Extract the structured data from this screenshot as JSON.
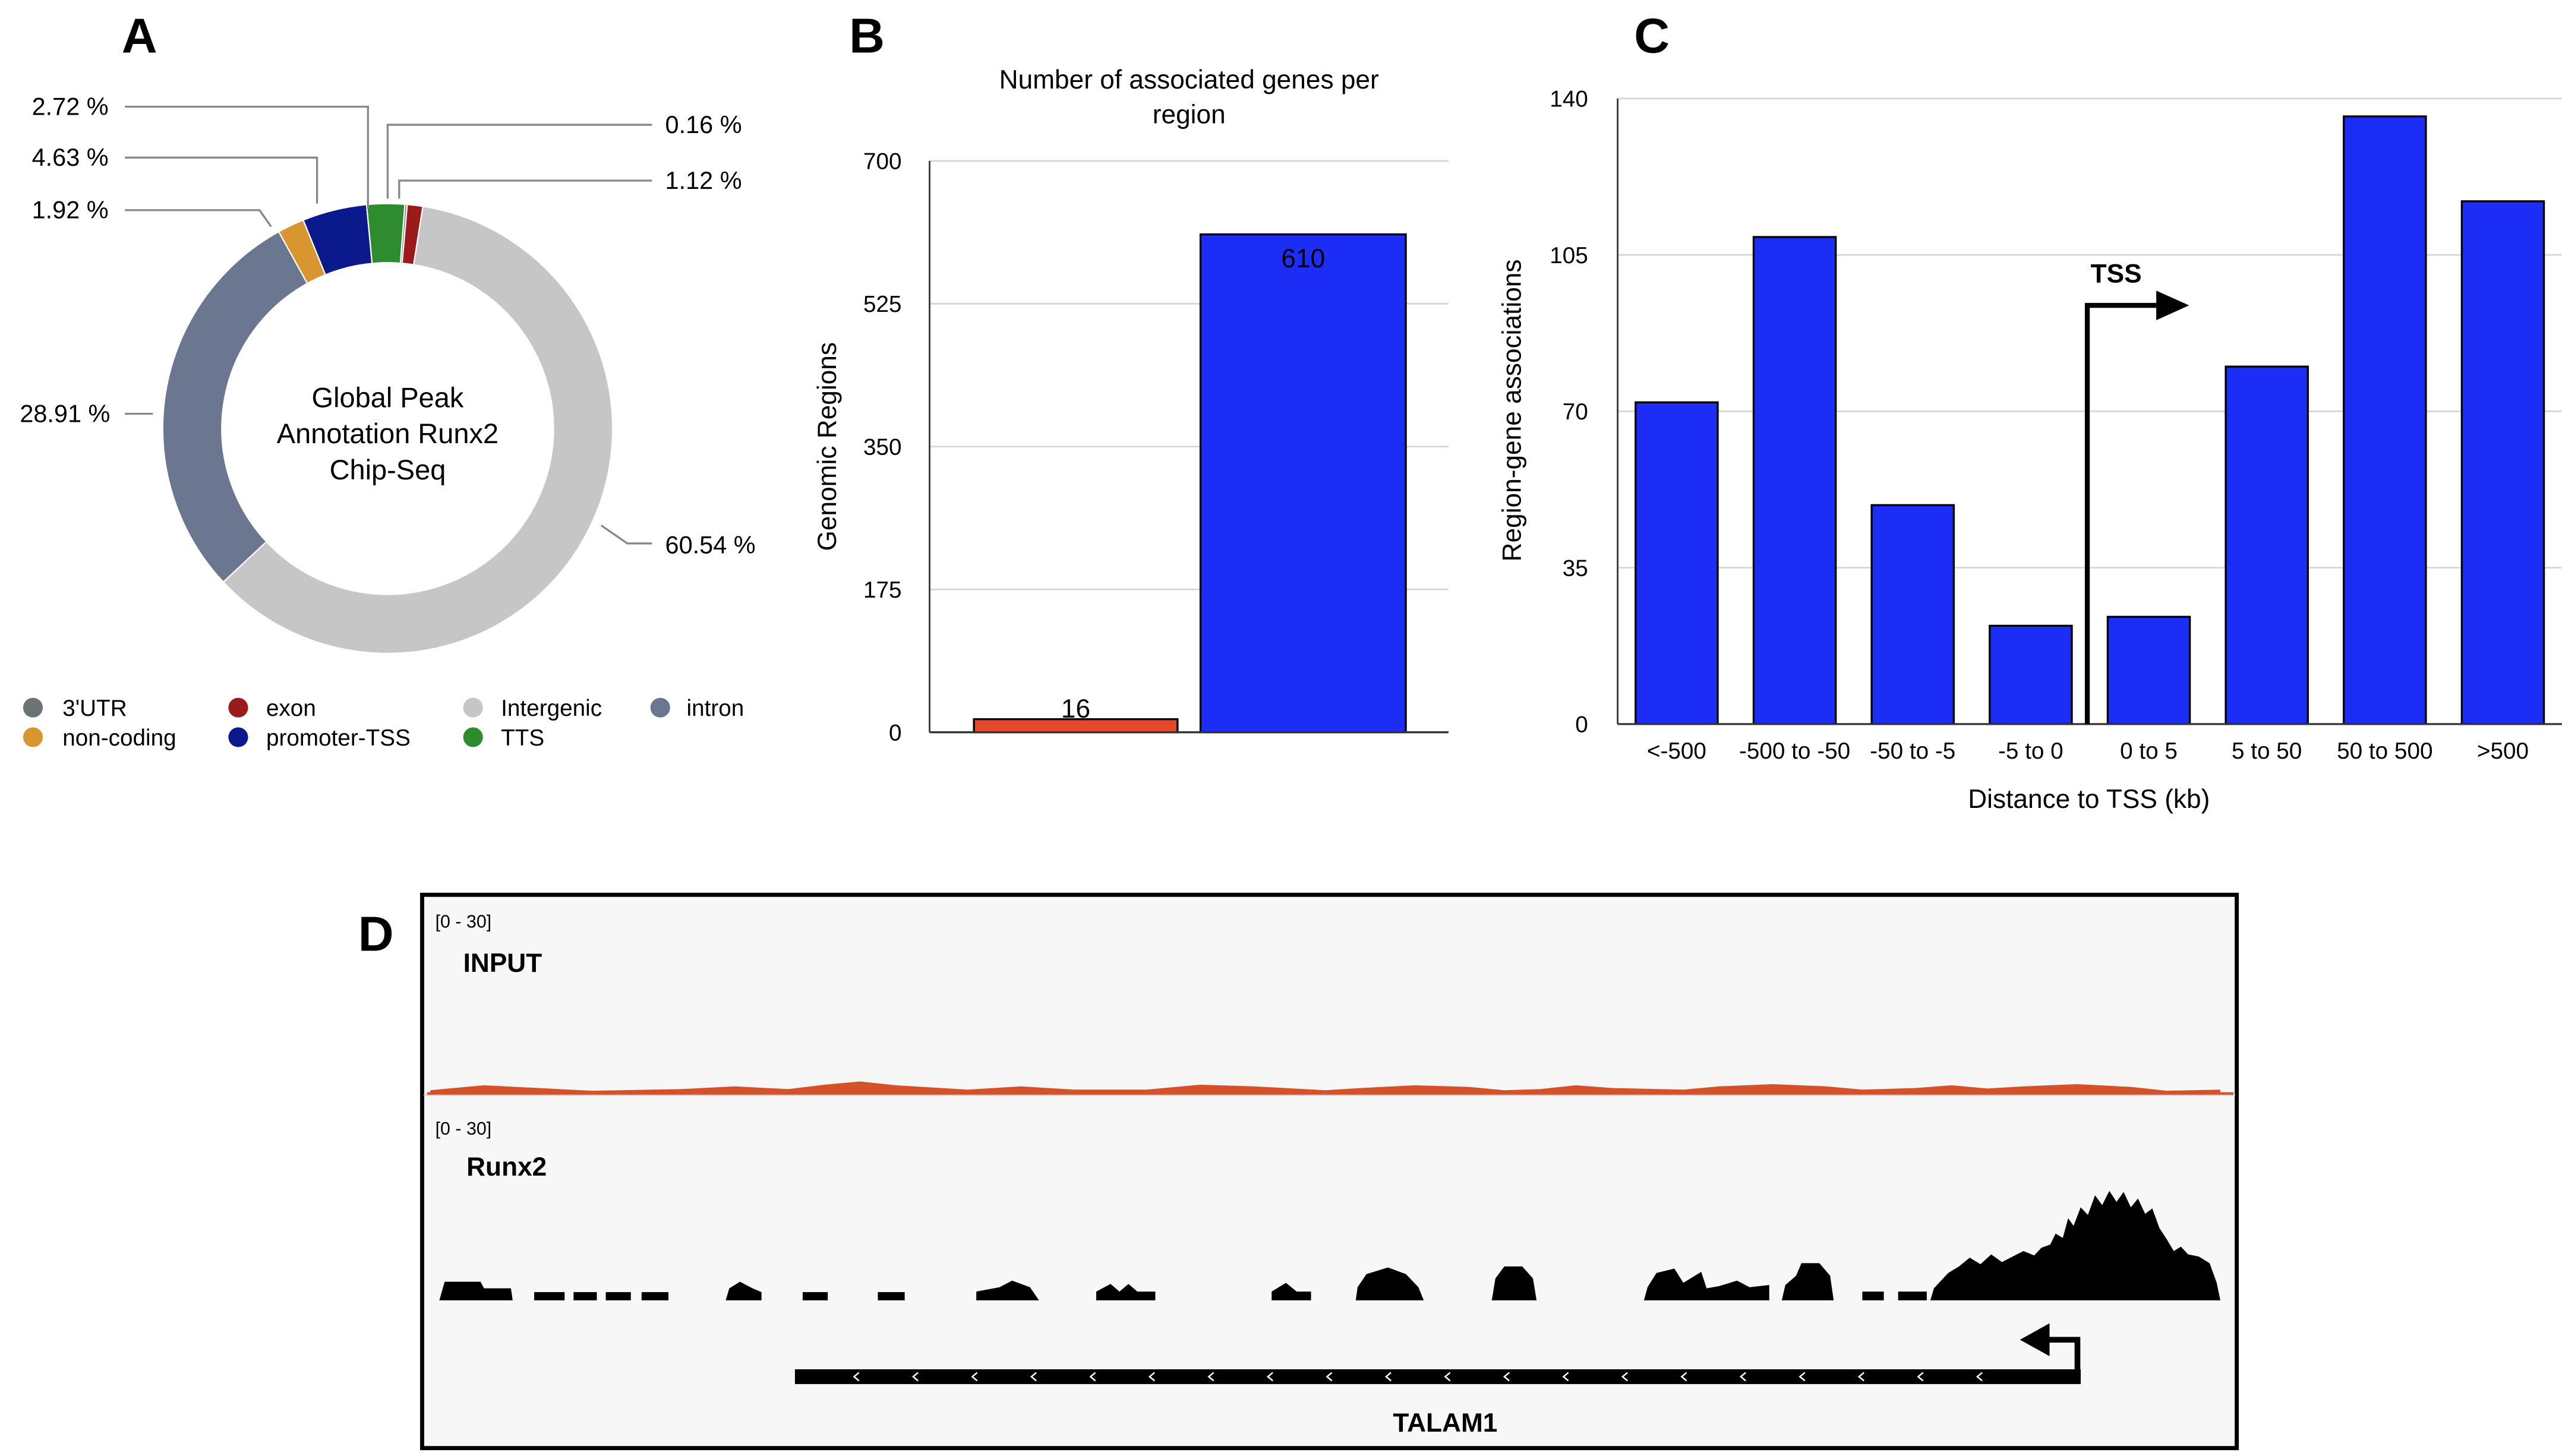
{
  "panel_labels": {
    "a": "A",
    "b": "B",
    "c": "C",
    "d": "D"
  },
  "colors": {
    "utr3": "#6a7474",
    "exon": "#9b1b1b",
    "intergenic": "#c6c6c6",
    "intron": "#6b7690",
    "noncoding": "#d9952f",
    "promoter": "#0a1a8c",
    "tts": "#2e8c2e",
    "blue_bar": "#1c2ef5",
    "red_bar": "#e24a2b",
    "input_track": "#d2532a",
    "signal": "#000000"
  },
  "chart_data": [
    {
      "type": "pie",
      "panel": "A",
      "center_title": [
        "Global Peak",
        "Annotation Runx2",
        "Chip-Seq"
      ],
      "slices": [
        {
          "name": "exon",
          "label": "1.12 %",
          "value": 1.12,
          "color_key": "exon"
        },
        {
          "name": "Intergenic",
          "label": "60.54 %",
          "value": 60.54,
          "color_key": "intergenic"
        },
        {
          "name": "intron",
          "label": "28.91 %",
          "value": 28.91,
          "color_key": "intron"
        },
        {
          "name": "non-coding",
          "label": "1.92 %",
          "value": 1.92,
          "color_key": "noncoding"
        },
        {
          "name": "promoter-TSS",
          "label": "4.63 %",
          "value": 4.63,
          "color_key": "promoter"
        },
        {
          "name": "TTS",
          "label": "2.72 %",
          "value": 2.72,
          "color_key": "tts"
        },
        {
          "name": "3'UTR",
          "label": "0.16 %",
          "value": 0.16,
          "color_key": "utr3"
        }
      ],
      "legend": [
        {
          "name": "3'UTR",
          "color_key": "utr3"
        },
        {
          "name": "exon",
          "color_key": "exon"
        },
        {
          "name": "Intergenic",
          "color_key": "intergenic"
        },
        {
          "name": "intron",
          "color_key": "intron"
        },
        {
          "name": "non-coding",
          "color_key": "noncoding"
        },
        {
          "name": "promoter-TSS",
          "color_key": "promoter"
        },
        {
          "name": "TTS",
          "color_key": "tts"
        }
      ]
    },
    {
      "type": "bar",
      "panel": "B",
      "title": [
        "Number of associated genes per",
        "region"
      ],
      "ylabel": "Genomic Regions",
      "ylim": [
        0,
        700
      ],
      "yticks": [
        "0",
        "175",
        "350",
        "525",
        "700"
      ],
      "categories": [
        "",
        ""
      ],
      "values": [
        16,
        610
      ],
      "value_labels": [
        "16",
        "610"
      ],
      "color_keys": [
        "red_bar",
        "blue_bar"
      ]
    },
    {
      "type": "bar",
      "panel": "C",
      "xlabel": "Distance to TSS (kb)",
      "ylabel": "Region-gene associations",
      "ylim": [
        0,
        140
      ],
      "yticks": [
        "0",
        "35",
        "70",
        "105",
        "140"
      ],
      "categories": [
        "<-500",
        "-500 to -50",
        "-50 to -5",
        "-5 to 0",
        "0 to 5",
        "5 to 50",
        "50 to 500",
        ">500"
      ],
      "values": [
        72,
        109,
        49,
        22,
        24,
        80,
        136,
        117
      ],
      "annotation": "TSS"
    },
    {
      "type": "area",
      "panel": "D",
      "tracks": [
        {
          "name": "INPUT",
          "range_label": "[0 - 30]",
          "ylim": [
            0,
            30
          ],
          "color_key": "input_track",
          "series": [
            [
              0.0,
              0.6
            ],
            [
              0.03,
              1.5
            ],
            [
              0.06,
              1.0
            ],
            [
              0.09,
              0.5
            ],
            [
              0.14,
              0.8
            ],
            [
              0.17,
              1.3
            ],
            [
              0.2,
              0.8
            ],
            [
              0.22,
              1.6
            ],
            [
              0.24,
              2.2
            ],
            [
              0.26,
              1.5
            ],
            [
              0.3,
              0.7
            ],
            [
              0.33,
              1.3
            ],
            [
              0.36,
              0.7
            ],
            [
              0.4,
              0.7
            ],
            [
              0.43,
              1.6
            ],
            [
              0.46,
              1.3
            ],
            [
              0.5,
              0.6
            ],
            [
              0.52,
              1.0
            ],
            [
              0.55,
              1.5
            ],
            [
              0.58,
              1.2
            ],
            [
              0.6,
              0.6
            ],
            [
              0.62,
              0.8
            ],
            [
              0.64,
              1.5
            ],
            [
              0.66,
              1.0
            ],
            [
              0.7,
              0.7
            ],
            [
              0.72,
              1.3
            ],
            [
              0.75,
              1.7
            ],
            [
              0.78,
              1.3
            ],
            [
              0.8,
              0.7
            ],
            [
              0.83,
              1.0
            ],
            [
              0.85,
              1.5
            ],
            [
              0.87,
              0.9
            ],
            [
              0.89,
              1.3
            ],
            [
              0.92,
              1.7
            ],
            [
              0.95,
              1.2
            ],
            [
              0.97,
              0.5
            ],
            [
              1.0,
              0.7
            ]
          ]
        },
        {
          "name": "Runx2",
          "range_label": "[0 - 30]",
          "ylim": [
            0,
            30
          ],
          "color_key": "signal",
          "series": [
            [
              0.005,
              0
            ],
            [
              0.008,
              3.4
            ],
            [
              0.028,
              3.4
            ],
            [
              0.03,
              2.2
            ],
            [
              0.045,
              2.2
            ],
            [
              0.046,
              0
            ],
            [
              0.058,
              0
            ],
            [
              0.058,
              1.5
            ],
            [
              0.075,
              1.5
            ],
            [
              0.075,
              0
            ],
            [
              0.08,
              0
            ],
            [
              0.08,
              1.5
            ],
            [
              0.093,
              1.5
            ],
            [
              0.093,
              0
            ],
            [
              0.098,
              0
            ],
            [
              0.098,
              1.5
            ],
            [
              0.112,
              1.5
            ],
            [
              0.112,
              0
            ],
            [
              0.118,
              0
            ],
            [
              0.118,
              1.5
            ],
            [
              0.133,
              1.5
            ],
            [
              0.133,
              0
            ],
            [
              0.165,
              0
            ],
            [
              0.167,
              2.2
            ],
            [
              0.173,
              3.4
            ],
            [
              0.18,
              2.2
            ],
            [
              0.185,
              1.5
            ],
            [
              0.185,
              0
            ],
            [
              0.208,
              0
            ],
            [
              0.208,
              1.5
            ],
            [
              0.222,
              1.5
            ],
            [
              0.222,
              0
            ],
            [
              0.25,
              0
            ],
            [
              0.25,
              1.5
            ],
            [
              0.265,
              1.5
            ],
            [
              0.265,
              0
            ],
            [
              0.305,
              0
            ],
            [
              0.305,
              1.6
            ],
            [
              0.318,
              2.4
            ],
            [
              0.325,
              3.6
            ],
            [
              0.335,
              2.4
            ],
            [
              0.34,
              0
            ],
            [
              0.372,
              0
            ],
            [
              0.372,
              1.6
            ],
            [
              0.38,
              3.0
            ],
            [
              0.385,
              1.6
            ],
            [
              0.39,
              3.0
            ],
            [
              0.395,
              1.6
            ],
            [
              0.405,
              1.6
            ],
            [
              0.405,
              0
            ],
            [
              0.47,
              0
            ],
            [
              0.47,
              1.6
            ],
            [
              0.478,
              3.2
            ],
            [
              0.484,
              1.6
            ],
            [
              0.492,
              1.6
            ],
            [
              0.492,
              0
            ],
            [
              0.517,
              0
            ],
            [
              0.518,
              2.4
            ],
            [
              0.523,
              4.8
            ],
            [
              0.535,
              6.0
            ],
            [
              0.545,
              4.8
            ],
            [
              0.552,
              2.4
            ],
            [
              0.555,
              0
            ],
            [
              0.593,
              0
            ],
            [
              0.595,
              4.0
            ],
            [
              0.6,
              6.2
            ],
            [
              0.61,
              6.2
            ],
            [
              0.616,
              4.0
            ],
            [
              0.618,
              0
            ],
            [
              0.678,
              0
            ],
            [
              0.68,
              2.4
            ],
            [
              0.685,
              5.0
            ],
            [
              0.695,
              5.8
            ],
            [
              0.7,
              3.2
            ],
            [
              0.71,
              5.2
            ],
            [
              0.713,
              2.2
            ],
            [
              0.72,
              2.6
            ],
            [
              0.73,
              3.6
            ],
            [
              0.737,
              2.4
            ],
            [
              0.748,
              2.8
            ],
            [
              0.748,
              0
            ],
            [
              0.755,
              0
            ],
            [
              0.757,
              2.8
            ],
            [
              0.763,
              4.5
            ],
            [
              0.766,
              6.8
            ],
            [
              0.776,
              6.8
            ],
            [
              0.782,
              4.5
            ],
            [
              0.784,
              0
            ],
            [
              0.8,
              0
            ],
            [
              0.8,
              1.6
            ],
            [
              0.812,
              1.6
            ],
            [
              0.812,
              0
            ],
            [
              0.82,
              0
            ],
            [
              0.82,
              1.6
            ],
            [
              0.836,
              1.6
            ],
            [
              0.836,
              0
            ],
            [
              0.838,
              0
            ],
            [
              0.84,
              2.2
            ],
            [
              0.848,
              5.0
            ],
            [
              0.854,
              6.2
            ],
            [
              0.86,
              7.8
            ],
            [
              0.866,
              6.6
            ],
            [
              0.872,
              8.4
            ],
            [
              0.878,
              7.0
            ],
            [
              0.884,
              8.0
            ],
            [
              0.89,
              9.0
            ],
            [
              0.896,
              8.2
            ],
            [
              0.9,
              9.6
            ],
            [
              0.905,
              10.2
            ],
            [
              0.908,
              12.2
            ],
            [
              0.912,
              11.4
            ],
            [
              0.915,
              15.0
            ],
            [
              0.918,
              13.6
            ],
            [
              0.922,
              17.0
            ],
            [
              0.926,
              15.6
            ],
            [
              0.93,
              19.2
            ],
            [
              0.934,
              17.4
            ],
            [
              0.938,
              20.0
            ],
            [
              0.942,
              18.0
            ],
            [
              0.946,
              19.8
            ],
            [
              0.95,
              17.0
            ],
            [
              0.954,
              18.6
            ],
            [
              0.958,
              15.8
            ],
            [
              0.962,
              16.8
            ],
            [
              0.966,
              13.2
            ],
            [
              0.97,
              11.2
            ],
            [
              0.974,
              9.0
            ],
            [
              0.978,
              9.8
            ],
            [
              0.982,
              8.4
            ],
            [
              0.988,
              8.0
            ],
            [
              0.994,
              6.8
            ],
            [
              0.998,
              3.2
            ],
            [
              1.0,
              0
            ]
          ]
        }
      ],
      "gene": {
        "name": "TALAM1",
        "strand": "-",
        "start": 0.2,
        "end": 0.92
      }
    }
  ]
}
